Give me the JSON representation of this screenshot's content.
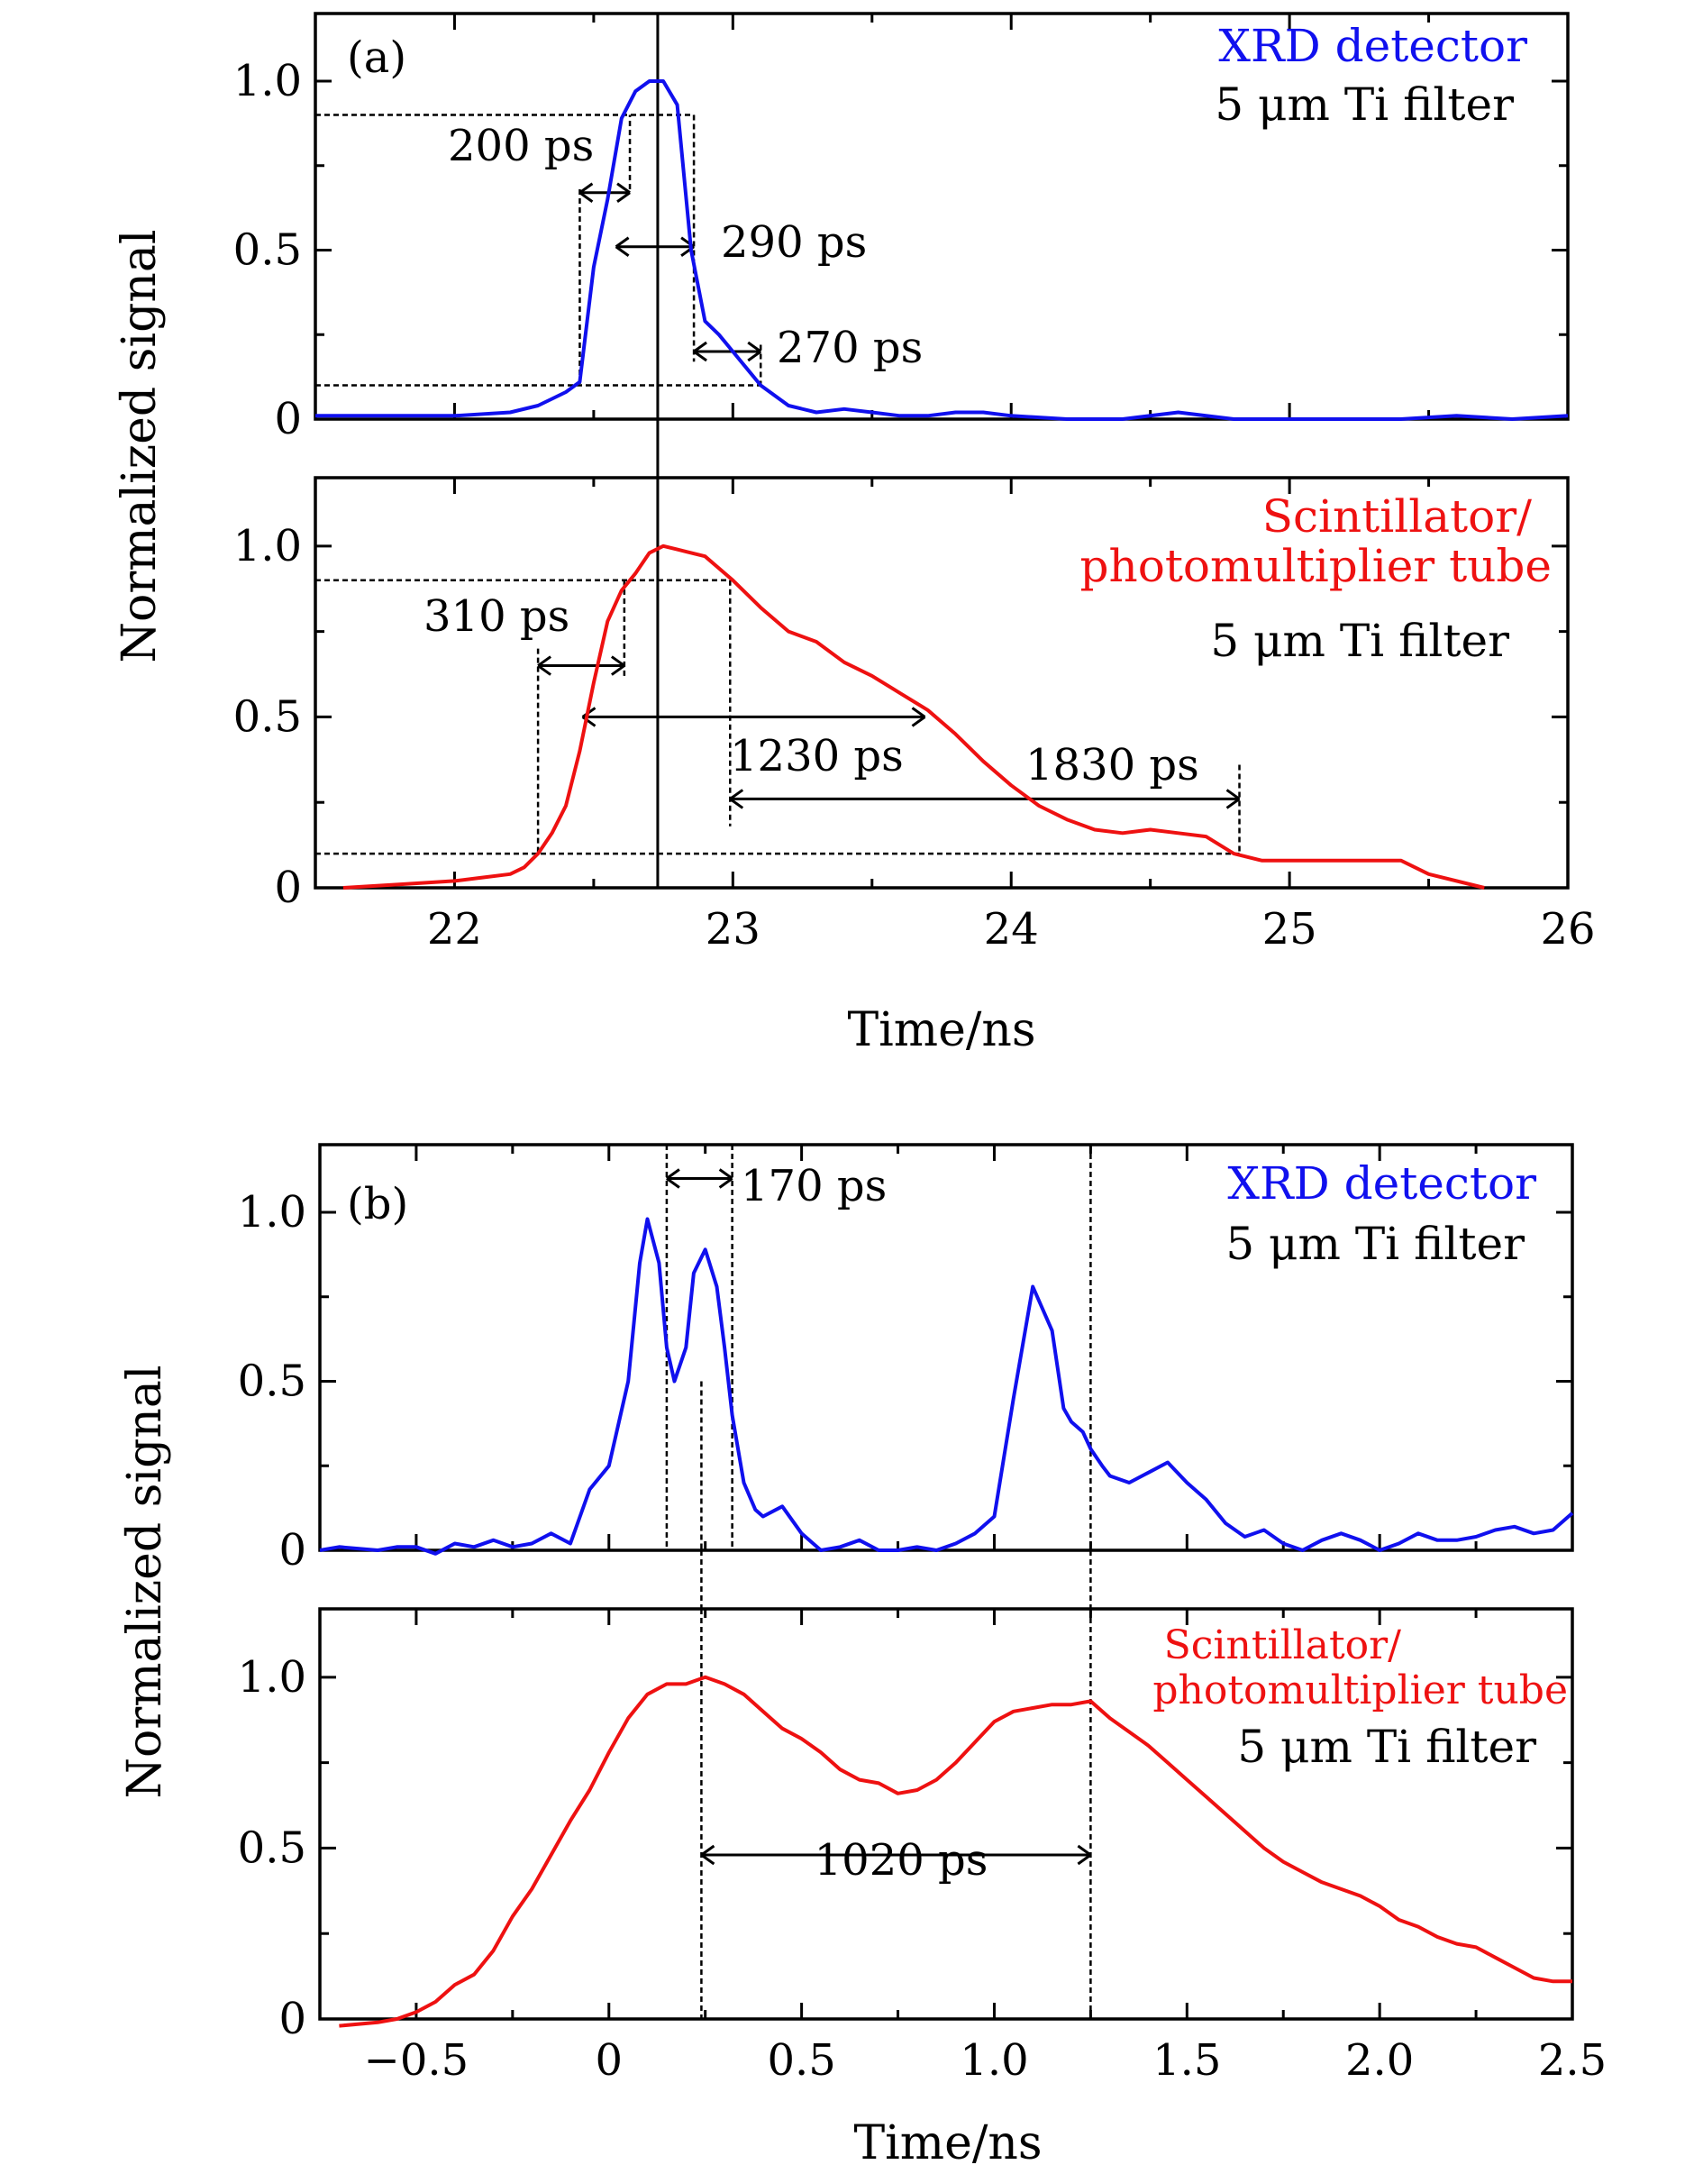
{
  "figure_a": {
    "panel_label": "(a)",
    "xlabel": "Time/ns",
    "ylabel": "Normalized signal",
    "xticks": [
      "22",
      "23",
      "24",
      "25",
      "26"
    ],
    "yticks": [
      "0",
      "0.5",
      "1.0"
    ],
    "top": {
      "legend": [
        {
          "text": "XRD detector",
          "color": "#1010ee"
        },
        {
          "text": "5 μm Ti filter",
          "color": "#000000"
        }
      ],
      "annotations": [
        "200 ps",
        "290 ps",
        "270 ps"
      ]
    },
    "bottom": {
      "legend": [
        {
          "text": "Scintillator/",
          "color": "#ee1111"
        },
        {
          "text": "photomultiplier tube",
          "color": "#ee1111"
        },
        {
          "text": "5 μm Ti filter",
          "color": "#000000"
        }
      ],
      "annotations": [
        "310 ps",
        "1230 ps",
        "1830 ps"
      ]
    }
  },
  "figure_b": {
    "panel_label": "(b)",
    "xlabel": "Time/ns",
    "ylabel": "Normalized signal",
    "xticks": [
      "−0.5",
      "0",
      "0.5",
      "1.0",
      "1.5",
      "2.0",
      "2.5"
    ],
    "yticks": [
      "0",
      "0.5",
      "1.0"
    ],
    "top": {
      "legend": [
        {
          "text": "XRD detector",
          "color": "#1010ee"
        },
        {
          "text": "5 μm Ti filter",
          "color": "#000000"
        }
      ],
      "annotations": [
        "170 ps"
      ]
    },
    "bottom": {
      "legend": [
        {
          "text": "Scintillator/",
          "color": "#ee1111"
        },
        {
          "text": "photomultiplier tube",
          "color": "#ee1111"
        },
        {
          "text": "5 μm Ti filter",
          "color": "#000000"
        }
      ],
      "annotations": [
        "1020 ps"
      ]
    }
  },
  "chart_data": [
    {
      "type": "line",
      "id": "a-top",
      "title": "XRD detector, 5 μm Ti filter",
      "xlabel": "Time/ns",
      "ylabel": "Normalized signal",
      "xlim": [
        21.5,
        26
      ],
      "ylim": [
        0,
        1.2
      ],
      "series": [
        {
          "name": "XRD detector",
          "color": "#1010ee",
          "x": [
            21.5,
            21.8,
            22.0,
            22.2,
            22.3,
            22.35,
            22.4,
            22.45,
            22.5,
            22.55,
            22.6,
            22.65,
            22.7,
            22.75,
            22.8,
            22.85,
            22.9,
            22.95,
            23.0,
            23.05,
            23.1,
            23.2,
            23.3,
            23.4,
            23.5,
            23.6,
            23.7,
            23.8,
            23.9,
            24.0,
            24.2,
            24.4,
            24.6,
            24.8,
            25.0,
            25.2,
            25.4,
            25.6,
            25.8,
            26.0
          ],
          "y": [
            0.01,
            0.01,
            0.01,
            0.02,
            0.04,
            0.06,
            0.08,
            0.11,
            0.45,
            0.65,
            0.89,
            0.97,
            1.0,
            1.0,
            0.93,
            0.5,
            0.29,
            0.25,
            0.2,
            0.15,
            0.1,
            0.04,
            0.02,
            0.03,
            0.02,
            0.01,
            0.01,
            0.02,
            0.02,
            0.01,
            0.0,
            0.0,
            0.02,
            0.0,
            0.0,
            0.0,
            0.0,
            0.01,
            0.0,
            0.01
          ]
        }
      ]
    },
    {
      "type": "line",
      "id": "a-bottom",
      "title": "Scintillator/photomultiplier tube, 5 μm Ti filter",
      "xlabel": "Time/ns",
      "ylabel": "Normalized signal",
      "xlim": [
        21.5,
        26
      ],
      "ylim": [
        0,
        1.2
      ],
      "series": [
        {
          "name": "Scintillator/photomultiplier tube",
          "color": "#ee1111",
          "x": [
            21.6,
            21.8,
            22.0,
            22.1,
            22.2,
            22.25,
            22.3,
            22.35,
            22.4,
            22.45,
            22.5,
            22.55,
            22.6,
            22.65,
            22.7,
            22.75,
            22.8,
            22.9,
            23.0,
            23.1,
            23.2,
            23.3,
            23.4,
            23.5,
            23.6,
            23.7,
            23.8,
            23.9,
            24.0,
            24.1,
            24.2,
            24.3,
            24.4,
            24.5,
            24.6,
            24.7,
            24.8,
            24.9,
            25.0,
            25.2,
            25.4,
            25.5,
            25.7
          ],
          "y": [
            0.0,
            0.01,
            0.02,
            0.03,
            0.04,
            0.06,
            0.1,
            0.16,
            0.24,
            0.4,
            0.6,
            0.78,
            0.87,
            0.92,
            0.98,
            1.0,
            0.99,
            0.97,
            0.9,
            0.82,
            0.75,
            0.72,
            0.66,
            0.62,
            0.57,
            0.52,
            0.45,
            0.37,
            0.3,
            0.24,
            0.2,
            0.17,
            0.16,
            0.17,
            0.16,
            0.15,
            0.1,
            0.08,
            0.08,
            0.08,
            0.08,
            0.04,
            0.0
          ]
        }
      ]
    },
    {
      "type": "line",
      "id": "b-top",
      "title": "XRD detector, 5 μm Ti filter",
      "xlabel": "Time/ns",
      "ylabel": "Normalized signal",
      "xlim": [
        -0.75,
        2.5
      ],
      "ylim": [
        0,
        1.2
      ],
      "series": [
        {
          "name": "XRD detector",
          "color": "#1010ee",
          "x": [
            -0.75,
            -0.7,
            -0.6,
            -0.55,
            -0.5,
            -0.45,
            -0.4,
            -0.35,
            -0.3,
            -0.25,
            -0.2,
            -0.15,
            -0.1,
            -0.05,
            0.0,
            0.05,
            0.08,
            0.1,
            0.13,
            0.15,
            0.17,
            0.2,
            0.22,
            0.25,
            0.28,
            0.3,
            0.32,
            0.35,
            0.38,
            0.4,
            0.45,
            0.5,
            0.55,
            0.6,
            0.65,
            0.7,
            0.75,
            0.8,
            0.85,
            0.9,
            0.95,
            1.0,
            1.05,
            1.1,
            1.15,
            1.18,
            1.2,
            1.23,
            1.25,
            1.28,
            1.3,
            1.35,
            1.4,
            1.45,
            1.5,
            1.55,
            1.6,
            1.65,
            1.7,
            1.75,
            1.8,
            1.85,
            1.9,
            1.95,
            2.0,
            2.05,
            2.1,
            2.15,
            2.2,
            2.25,
            2.3,
            2.35,
            2.4,
            2.45,
            2.5
          ],
          "y": [
            0.0,
            0.01,
            0.0,
            0.01,
            0.01,
            -0.01,
            0.02,
            0.01,
            0.03,
            0.01,
            0.02,
            0.05,
            0.02,
            0.18,
            0.25,
            0.5,
            0.85,
            0.98,
            0.85,
            0.6,
            0.5,
            0.6,
            0.82,
            0.89,
            0.78,
            0.6,
            0.4,
            0.2,
            0.12,
            0.1,
            0.13,
            0.05,
            0.0,
            0.01,
            0.03,
            0.0,
            0.0,
            0.01,
            0.0,
            0.02,
            0.05,
            0.1,
            0.45,
            0.78,
            0.65,
            0.42,
            0.38,
            0.35,
            0.3,
            0.25,
            0.22,
            0.2,
            0.23,
            0.26,
            0.2,
            0.15,
            0.08,
            0.04,
            0.06,
            0.02,
            0.0,
            0.03,
            0.05,
            0.03,
            0.0,
            0.02,
            0.05,
            0.03,
            0.03,
            0.04,
            0.06,
            0.07,
            0.05,
            0.06,
            0.11
          ]
        }
      ]
    },
    {
      "type": "line",
      "id": "b-bottom",
      "title": "Scintillator/photomultiplier tube, 5 μm Ti filter",
      "xlabel": "Time/ns",
      "ylabel": "Normalized signal",
      "xlim": [
        -0.75,
        2.5
      ],
      "ylim": [
        0,
        1.2
      ],
      "series": [
        {
          "name": "Scintillator/photomultiplier tube",
          "color": "#ee1111",
          "x": [
            -0.7,
            -0.6,
            -0.55,
            -0.5,
            -0.45,
            -0.4,
            -0.35,
            -0.3,
            -0.25,
            -0.2,
            -0.15,
            -0.1,
            -0.05,
            0.0,
            0.05,
            0.1,
            0.15,
            0.2,
            0.25,
            0.3,
            0.35,
            0.4,
            0.45,
            0.5,
            0.55,
            0.6,
            0.65,
            0.7,
            0.75,
            0.8,
            0.85,
            0.9,
            0.95,
            1.0,
            1.05,
            1.1,
            1.15,
            1.2,
            1.25,
            1.3,
            1.35,
            1.4,
            1.45,
            1.5,
            1.55,
            1.6,
            1.65,
            1.7,
            1.75,
            1.8,
            1.85,
            1.9,
            1.95,
            2.0,
            2.05,
            2.1,
            2.15,
            2.2,
            2.25,
            2.3,
            2.35,
            2.4,
            2.45,
            2.5
          ],
          "y": [
            -0.02,
            -0.01,
            0.0,
            0.02,
            0.05,
            0.1,
            0.13,
            0.2,
            0.3,
            0.38,
            0.48,
            0.58,
            0.67,
            0.78,
            0.88,
            0.95,
            0.98,
            0.98,
            1.0,
            0.98,
            0.95,
            0.9,
            0.85,
            0.82,
            0.78,
            0.73,
            0.7,
            0.69,
            0.66,
            0.67,
            0.7,
            0.75,
            0.81,
            0.87,
            0.9,
            0.91,
            0.92,
            0.92,
            0.93,
            0.88,
            0.84,
            0.8,
            0.75,
            0.7,
            0.65,
            0.6,
            0.55,
            0.5,
            0.46,
            0.43,
            0.4,
            0.38,
            0.36,
            0.33,
            0.29,
            0.27,
            0.24,
            0.22,
            0.21,
            0.18,
            0.15,
            0.12,
            0.11,
            0.11
          ]
        }
      ]
    }
  ]
}
